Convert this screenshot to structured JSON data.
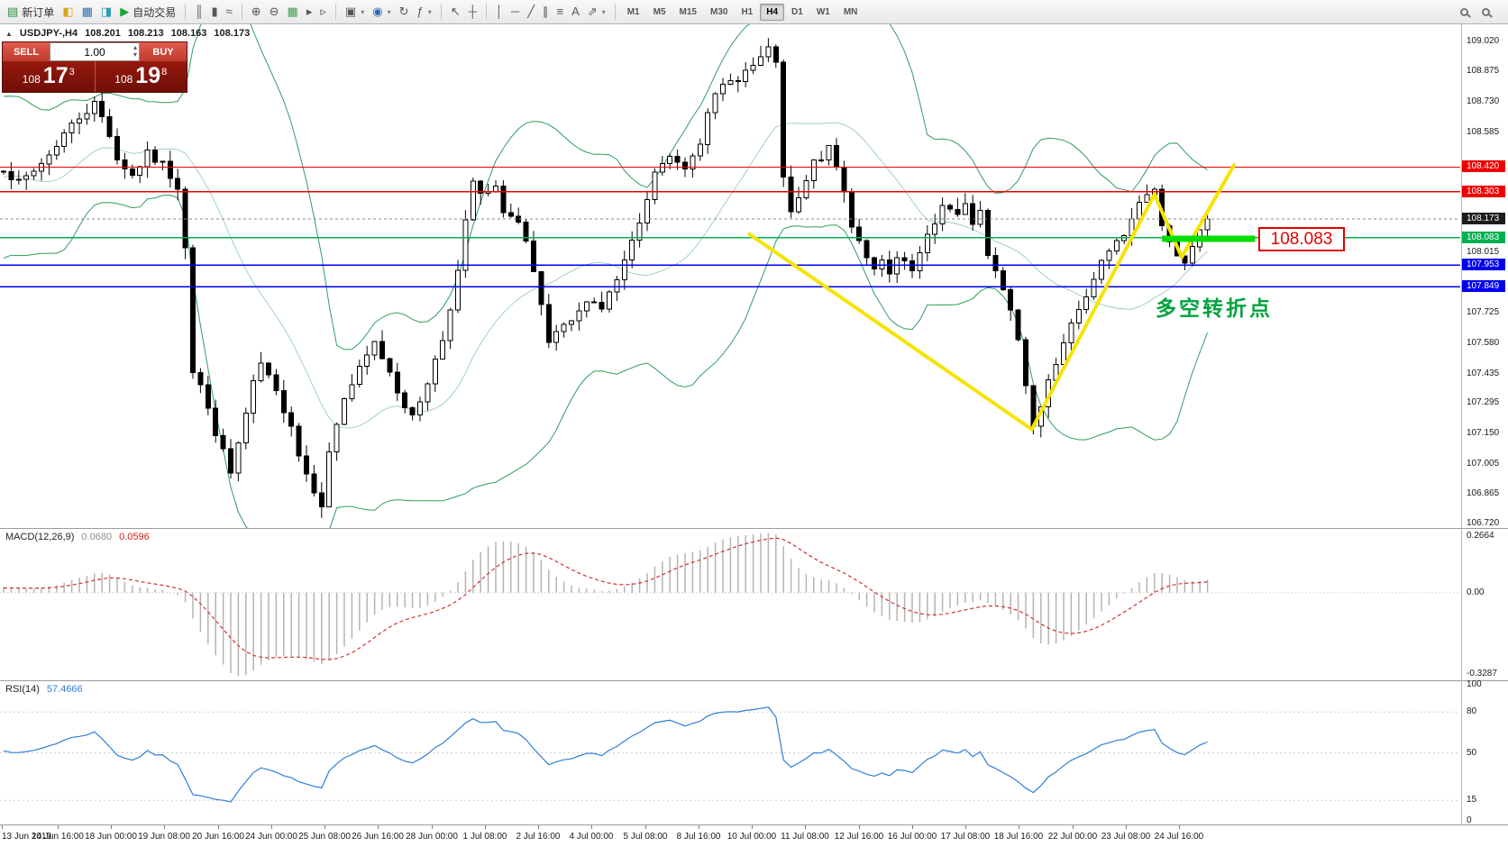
{
  "icons": {
    "collapse": "▲",
    "spinner_up": "▴",
    "spinner_down": "▾",
    "dropdown_caret": "▾"
  },
  "toolbar": {
    "buttons_left": [
      {
        "name": "new-order-button",
        "glyph": "▤",
        "glyph_color": "#2e8b3d",
        "label": "新订单"
      },
      {
        "name": "market-watch-icon",
        "glyph": "◧",
        "glyph_color": "#d9a520"
      },
      {
        "name": "data-window-icon",
        "glyph": "▦",
        "glyph_color": "#2f6db5"
      },
      {
        "name": "terminal-window-icon",
        "glyph": "◨",
        "glyph_color": "#2f9ab5"
      },
      {
        "name": "auto-trading-button",
        "glyph": "▶",
        "glyph_color": "#18a335",
        "label": "自动交易"
      }
    ],
    "chart_tools": [
      {
        "name": "bar-chart-icon",
        "glyph": "║"
      },
      {
        "name": "candlestick-chart-icon",
        "glyph": "▮"
      },
      {
        "name": "line-chart-icon",
        "glyph": "≈"
      }
    ],
    "zoom_tools": [
      {
        "name": "zoom-in-icon",
        "glyph": "⊕"
      },
      {
        "name": "zoom-out-icon",
        "glyph": "⊖"
      },
      {
        "name": "tile-windows-icon",
        "glyph": "▦",
        "glyph_color": "#3f9e4d"
      },
      {
        "name": "auto-scroll-icon",
        "glyph": "▸"
      },
      {
        "name": "chart-shift-icon",
        "glyph": "▹"
      }
    ],
    "window_tools": [
      {
        "name": "new-chart-icon",
        "glyph": "▣",
        "dropdown": true
      },
      {
        "name": "profiles-icon",
        "glyph": "◉",
        "glyph_color": "#2f6db5",
        "dropdown": true
      },
      {
        "name": "cycle-icon",
        "glyph": "↻"
      },
      {
        "name": "indicators-icon",
        "glyph": "ƒ",
        "dropdown": true
      }
    ],
    "cursor_tools": [
      {
        "name": "cursor-icon",
        "glyph": "↖"
      },
      {
        "name": "crosshair-icon",
        "glyph": "┼"
      }
    ],
    "draw_tools": [
      {
        "name": "vertical-line-icon",
        "glyph": "│"
      },
      {
        "name": "horizontal-line-icon",
        "glyph": "─"
      },
      {
        "name": "trendline-icon",
        "glyph": "╱"
      },
      {
        "name": "channel-icon",
        "glyph": "∥"
      },
      {
        "name": "fibonacci-icon",
        "glyph": "≡"
      },
      {
        "name": "text-label-icon",
        "glyph": "A"
      },
      {
        "name": "arrow-tools-icon",
        "glyph": "⇗",
        "dropdown": true
      }
    ],
    "timeframes": [
      "M1",
      "M5",
      "M15",
      "M30",
      "H1",
      "H4",
      "D1",
      "W1",
      "MN"
    ],
    "active_timeframe": "H4",
    "right_icons": [
      {
        "name": "search-zoom-in-icon",
        "glyph": "mag"
      },
      {
        "name": "search-zoom-out-icon",
        "glyph": "mag"
      }
    ]
  },
  "symbol_info": {
    "title": "USDJPY-,H4",
    "open": "108.201",
    "high": "108.213",
    "low": "108.163",
    "close": "108.173"
  },
  "trade_panel": {
    "sell_label": "SELL",
    "buy_label": "BUY",
    "volume": "1.00",
    "sell_price": {
      "small": "108",
      "big": "17",
      "sup": "3"
    },
    "buy_price": {
      "small": "108",
      "big": "19",
      "sup": "8"
    }
  },
  "chart": {
    "type": "candlestick",
    "bars": 160,
    "bar_spacing": 8.4,
    "first_open": 108.4,
    "price_top": 109.1,
    "price_bottom": 106.7,
    "candle_up_fill": "#ffffff",
    "candle_down_fill": "#000000",
    "candle_border": "#000000",
    "band_color": "#2e9e5b",
    "trend_color": "#f6e400",
    "bollinger": {
      "period": 20,
      "deviation": 2
    },
    "price_path_anchors": [
      [
        0,
        108.42
      ],
      [
        2,
        108.34
      ],
      [
        4,
        108.4
      ],
      [
        6,
        108.48
      ],
      [
        8,
        108.58
      ],
      [
        10,
        108.66
      ],
      [
        12,
        108.72
      ],
      [
        13,
        108.66
      ],
      [
        14,
        108.58
      ],
      [
        15,
        108.46
      ],
      [
        17,
        108.38
      ],
      [
        19,
        108.48
      ],
      [
        21,
        108.43
      ],
      [
        23,
        108.33
      ],
      [
        24,
        108.05
      ],
      [
        25,
        107.45
      ],
      [
        26,
        107.38
      ],
      [
        27,
        107.26
      ],
      [
        29,
        107.06
      ],
      [
        30,
        106.96
      ],
      [
        31,
        107.1
      ],
      [
        32,
        107.24
      ],
      [
        33,
        107.38
      ],
      [
        34,
        107.48
      ],
      [
        35,
        107.41
      ],
      [
        36,
        107.34
      ],
      [
        38,
        107.2
      ],
      [
        39,
        107.05
      ],
      [
        40,
        106.96
      ],
      [
        41,
        106.89
      ],
      [
        42,
        106.82
      ],
      [
        43,
        107.05
      ],
      [
        44,
        107.2
      ],
      [
        45,
        107.32
      ],
      [
        47,
        107.45
      ],
      [
        49,
        107.58
      ],
      [
        51,
        107.45
      ],
      [
        52,
        107.36
      ],
      [
        54,
        107.22
      ],
      [
        56,
        107.4
      ],
      [
        58,
        107.6
      ],
      [
        60,
        107.92
      ],
      [
        61,
        108.15
      ],
      [
        62,
        108.35
      ],
      [
        63,
        108.28
      ],
      [
        65,
        108.31
      ],
      [
        66,
        108.22
      ],
      [
        68,
        108.15
      ],
      [
        69,
        108.05
      ],
      [
        71,
        107.75
      ],
      [
        72,
        107.58
      ],
      [
        74,
        107.65
      ],
      [
        76,
        107.72
      ],
      [
        77,
        107.8
      ],
      [
        79,
        107.75
      ],
      [
        81,
        107.88
      ],
      [
        83,
        108.05
      ],
      [
        85,
        108.25
      ],
      [
        86,
        108.4
      ],
      [
        88,
        108.46
      ],
      [
        90,
        108.42
      ],
      [
        92,
        108.55
      ],
      [
        93,
        108.7
      ],
      [
        95,
        108.8
      ],
      [
        97,
        108.85
      ],
      [
        99,
        108.9
      ],
      [
        101,
        108.97
      ],
      [
        102,
        108.93
      ],
      [
        103,
        108.35
      ],
      [
        104,
        108.2
      ],
      [
        105,
        108.26
      ],
      [
        106,
        108.35
      ],
      [
        107,
        108.44
      ],
      [
        109,
        108.5
      ],
      [
        110,
        108.42
      ],
      [
        111,
        108.3
      ],
      [
        112,
        108.15
      ],
      [
        114,
        108.0
      ],
      [
        115,
        107.92
      ],
      [
        116,
        107.96
      ],
      [
        117,
        107.9
      ],
      [
        118,
        107.98
      ],
      [
        120,
        107.92
      ],
      [
        121,
        108.0
      ],
      [
        122,
        108.08
      ],
      [
        123,
        108.15
      ],
      [
        124,
        108.25
      ],
      [
        126,
        108.18
      ],
      [
        127,
        108.23
      ],
      [
        128,
        108.16
      ],
      [
        129,
        108.21
      ],
      [
        130,
        108.0
      ],
      [
        132,
        107.85
      ],
      [
        133,
        107.75
      ],
      [
        134,
        107.6
      ],
      [
        135,
        107.38
      ],
      [
        136,
        107.2
      ],
      [
        137,
        107.3
      ],
      [
        138,
        107.42
      ],
      [
        139,
        107.5
      ],
      [
        140,
        107.6
      ],
      [
        142,
        107.72
      ],
      [
        143,
        107.82
      ],
      [
        144,
        107.9
      ],
      [
        145,
        107.98
      ],
      [
        146,
        108.02
      ],
      [
        148,
        108.1
      ],
      [
        149,
        108.18
      ],
      [
        150,
        108.24
      ],
      [
        151,
        108.28
      ],
      [
        152,
        108.3
      ],
      [
        153,
        108.14
      ],
      [
        154,
        108.05
      ],
      [
        155,
        108.0
      ],
      [
        156,
        107.96
      ],
      [
        157,
        108.05
      ],
      [
        158,
        108.12
      ],
      [
        159,
        108.173
      ]
    ],
    "last_close": 108.173,
    "axis_labels": [
      [
        "109.020",
        109.02
      ],
      [
        "108.875",
        108.875
      ],
      [
        "108.730",
        108.73
      ],
      [
        "108.585",
        108.585
      ],
      [
        "108.015",
        108.015
      ],
      [
        "107.725",
        107.725
      ],
      [
        "107.580",
        107.58
      ],
      [
        "107.435",
        107.435
      ],
      [
        "107.295",
        107.295
      ],
      [
        "107.150",
        107.15
      ],
      [
        "107.005",
        107.005
      ],
      [
        "106.865",
        106.865
      ],
      [
        "106.720",
        106.72
      ]
    ],
    "line_labels": [
      {
        "price": 108.42,
        "text": "108.420",
        "color": "#ee0000",
        "width": 1.3
      },
      {
        "price": 108.303,
        "text": "108.303",
        "color": "#ee0000",
        "width": 1.3
      },
      {
        "price": 108.173,
        "text": "108.173",
        "color": "#888888",
        "box_color": "#1c1c1c",
        "width": 1,
        "style": "dashed",
        "is_current": true
      },
      {
        "price": 108.083,
        "text": "108.083",
        "color": "#00b050",
        "width": 1.6
      },
      {
        "price": 107.953,
        "text": "107.953",
        "color": "#0000ee",
        "width": 1.6
      },
      {
        "price": 107.849,
        "text": "107.849",
        "color": "#0000ee",
        "width": 1.6
      }
    ],
    "yellow_polyline": [
      [
        98.5,
        108.1
      ],
      [
        135.8,
        107.17
      ],
      [
        152,
        108.29
      ],
      [
        155.6,
        107.99
      ],
      [
        162.5,
        108.43
      ]
    ],
    "green_segment": {
      "bar_start": 153,
      "bar_end": 165.3,
      "price": 108.078,
      "thickness": 7,
      "color": "#00dd00"
    },
    "callout_label": "108.083",
    "annotation_text": "多空转折点"
  },
  "macd": {
    "title": "MACD(12,26,9)",
    "value_main": "0.0680",
    "value_signal": "0.0596",
    "fast": 12,
    "slow": 26,
    "signal": 9,
    "axis_top": "0.2664",
    "axis_zero": "0.00",
    "axis_bottom": "-0.3287",
    "hist_color": "#b4b4b4",
    "signal_color": "#d23030"
  },
  "rsi": {
    "title": "RSI(14)",
    "value": "57.4666",
    "period": 14,
    "axis_labels": [
      [
        "100",
        100
      ],
      [
        "80",
        80
      ],
      [
        "50",
        50
      ],
      [
        "15",
        15
      ],
      [
        "0",
        0
      ]
    ],
    "levels": [
      80,
      50,
      15
    ],
    "line_color": "#2f7ed8"
  },
  "time_axis": {
    "labels": [
      [
        "13 Jun 2019",
        2
      ],
      [
        "14 Jun 16:00",
        64
      ],
      [
        "18 Jun 00:00",
        123
      ],
      [
        "19 Jun 08:00",
        182
      ],
      [
        "20 Jun 16:00",
        242
      ],
      [
        "24 Jun 00:00",
        301
      ],
      [
        "25 Jun 08:00",
        360
      ],
      [
        "26 Jun 16:00",
        419
      ],
      [
        "28 Jun 00:00",
        479
      ],
      [
        "1 Jul 08:00",
        538
      ],
      [
        "2 Jul 16:00",
        597
      ],
      [
        "4 Jul 00:00",
        656
      ],
      [
        "5 Jul 08:00",
        716
      ],
      [
        "8 Jul 16:00",
        775
      ],
      [
        "10 Jul 00:00",
        834
      ],
      [
        "11 Jul 08:00",
        893
      ],
      [
        "12 Jul 16:00",
        953
      ],
      [
        "16 Jul 00:00",
        1012
      ],
      [
        "17 Jul 08:00",
        1071
      ],
      [
        "18 Jul 16:00",
        1130
      ],
      [
        "22 Jul 00:00",
        1190
      ],
      [
        "23 Jul 08:00",
        1249
      ],
      [
        "24 Jul 16:00",
        1308
      ]
    ]
  }
}
